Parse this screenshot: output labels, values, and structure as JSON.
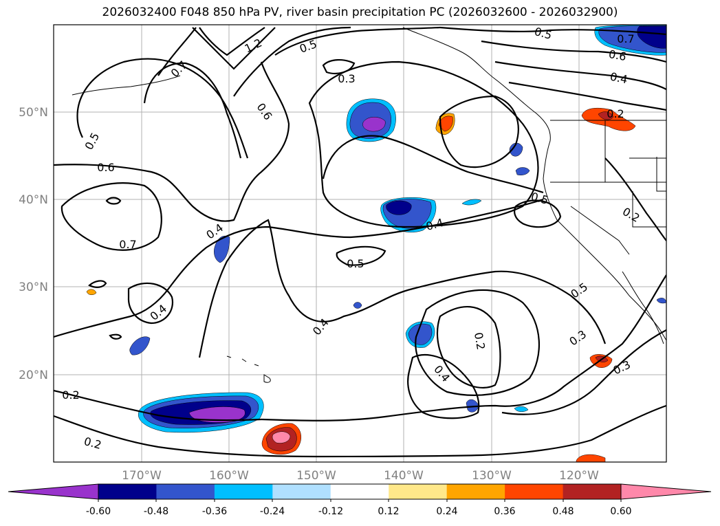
{
  "title": "2026032400 F048 850 hPa PV, river basin precipitation PC (2026032600 - 2026032900)",
  "lat_labels": [
    "50°N",
    "40°N",
    "30°N",
    "20°N"
  ],
  "lon_labels": [
    "170°W",
    "160°W",
    "150°W",
    "140°W",
    "130°W",
    "120°W"
  ],
  "contour_labels": [
    "0.5",
    "0.7",
    "0.6",
    "0.7",
    "0.4",
    "0.4",
    "0.2",
    "0.2",
    "1.2",
    "0.5",
    "0.7",
    "0.3",
    "0.6",
    "0.5",
    "0.6",
    "0.4",
    "0.2",
    "0.5",
    "0.4",
    "0.2",
    "0.5",
    "0.4",
    "0.2",
    "0.4",
    "0.5",
    "0.3",
    "0.3"
  ],
  "colorbar": {
    "tick_labels": [
      "-0.60",
      "-0.48",
      "-0.36",
      "-0.24",
      "-0.12",
      "0.12",
      "0.24",
      "0.36",
      "0.48",
      "0.60"
    ],
    "colors": [
      "#9933cc",
      "#00008b",
      "#3355cc",
      "#00bfff",
      "#b0e0ff",
      "#ffffff",
      "#ffe88a",
      "#ffa500",
      "#ff4500",
      "#b22222",
      "#ff88aa"
    ]
  }
}
